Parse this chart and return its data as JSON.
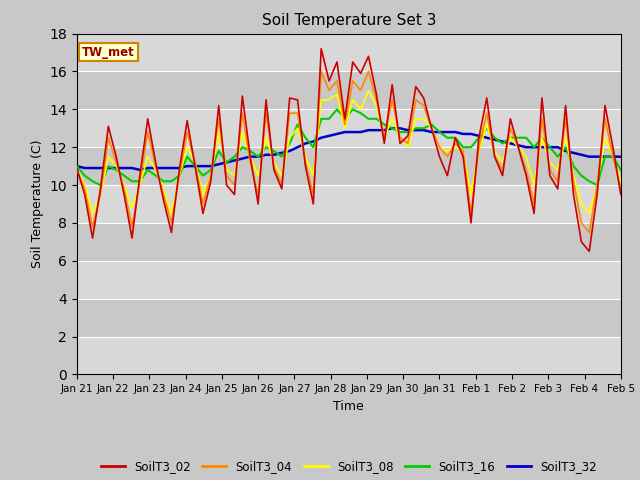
{
  "title": "Soil Temperature Set 3",
  "xlabel": "Time",
  "ylabel": "Soil Temperature (C)",
  "ylim": [
    0,
    18
  ],
  "yticks": [
    0,
    2,
    4,
    6,
    8,
    10,
    12,
    14,
    16,
    18
  ],
  "background_color": "#d8d8d8",
  "plot_bg_color": "#e8e8e8",
  "annotation_text": "TW_met",
  "annotation_bg": "#ffffcc",
  "annotation_border": "#cc0000",
  "series": {
    "SoilT3_02": {
      "color": "#cc0000",
      "lw": 1.2,
      "values": [
        10.9,
        9.5,
        7.2,
        9.8,
        13.1,
        11.5,
        9.5,
        7.2,
        10.5,
        13.5,
        11.2,
        9.2,
        7.5,
        10.8,
        13.4,
        11.0,
        8.5,
        10.2,
        14.2,
        10.0,
        9.5,
        14.7,
        11.5,
        9.0,
        14.5,
        10.8,
        9.8,
        14.6,
        14.5,
        11.0,
        9.0,
        17.2,
        15.5,
        16.5,
        13.5,
        16.5,
        15.9,
        16.8,
        14.8,
        12.2,
        15.3,
        12.2,
        12.6,
        15.2,
        14.6,
        13.0,
        11.5,
        10.5,
        12.5,
        11.5,
        8.0,
        12.5,
        14.6,
        11.5,
        10.5,
        13.5,
        12.0,
        10.5,
        8.5,
        14.6,
        10.5,
        9.8,
        14.2,
        9.5,
        7.0,
        6.5,
        9.5,
        14.2,
        12.0,
        9.5
      ]
    },
    "SoilT3_04": {
      "color": "#ff8800",
      "lw": 1.2,
      "values": [
        10.8,
        9.8,
        7.8,
        9.5,
        12.5,
        11.2,
        9.8,
        7.8,
        10.2,
        12.8,
        11.0,
        9.5,
        8.0,
        10.5,
        12.8,
        11.2,
        9.0,
        10.5,
        13.5,
        10.5,
        10.0,
        13.8,
        11.2,
        9.5,
        13.8,
        11.0,
        10.0,
        13.8,
        13.8,
        11.2,
        9.5,
        16.0,
        15.0,
        15.5,
        13.2,
        15.5,
        15.0,
        16.0,
        14.5,
        12.5,
        14.5,
        12.5,
        12.2,
        14.5,
        14.2,
        13.0,
        12.0,
        11.5,
        12.2,
        11.8,
        8.5,
        12.0,
        13.8,
        11.5,
        10.8,
        13.0,
        12.0,
        10.8,
        9.0,
        13.5,
        10.8,
        10.2,
        13.5,
        10.2,
        8.0,
        7.5,
        10.0,
        13.5,
        11.5,
        9.8
      ]
    },
    "SoilT3_08": {
      "color": "#ffff00",
      "lw": 1.2,
      "values": [
        10.8,
        10.0,
        8.5,
        9.5,
        11.5,
        11.0,
        10.0,
        8.8,
        10.0,
        11.5,
        10.8,
        9.8,
        8.5,
        10.5,
        12.0,
        11.2,
        9.5,
        10.5,
        12.8,
        10.8,
        10.5,
        12.8,
        11.5,
        10.5,
        12.5,
        11.2,
        10.5,
        12.5,
        13.0,
        11.5,
        10.5,
        14.5,
        14.5,
        14.8,
        13.0,
        14.5,
        14.0,
        15.0,
        14.2,
        12.5,
        13.5,
        12.5,
        12.0,
        13.5,
        13.5,
        13.0,
        12.0,
        11.8,
        12.0,
        11.8,
        9.5,
        11.8,
        13.2,
        11.8,
        11.2,
        12.5,
        12.0,
        11.5,
        10.0,
        12.5,
        11.2,
        10.8,
        12.5,
        10.5,
        9.0,
        8.5,
        10.0,
        12.5,
        11.5,
        10.2
      ]
    },
    "SoilT3_16": {
      "color": "#00cc00",
      "lw": 1.5,
      "values": [
        11.0,
        10.5,
        10.2,
        10.0,
        11.0,
        10.8,
        10.5,
        10.2,
        10.2,
        10.8,
        10.5,
        10.2,
        10.2,
        10.5,
        11.5,
        11.0,
        10.5,
        10.8,
        11.8,
        11.2,
        11.5,
        12.0,
        11.8,
        11.5,
        12.0,
        11.8,
        11.5,
        12.2,
        13.2,
        12.5,
        12.0,
        13.5,
        13.5,
        14.0,
        13.5,
        14.0,
        13.8,
        13.5,
        13.5,
        13.2,
        13.0,
        12.8,
        12.8,
        13.0,
        13.0,
        13.2,
        12.8,
        12.5,
        12.5,
        12.0,
        12.0,
        12.5,
        13.0,
        12.5,
        12.2,
        12.5,
        12.5,
        12.5,
        12.0,
        12.5,
        12.0,
        11.5,
        12.0,
        11.0,
        10.5,
        10.2,
        10.0,
        11.5,
        11.5,
        10.8
      ]
    },
    "SoilT3_32": {
      "color": "#0000cc",
      "lw": 1.8,
      "values": [
        11.0,
        10.9,
        10.9,
        10.9,
        10.9,
        10.9,
        10.9,
        10.9,
        10.8,
        10.9,
        10.9,
        10.9,
        10.9,
        10.9,
        11.0,
        11.0,
        11.0,
        11.0,
        11.1,
        11.2,
        11.3,
        11.4,
        11.5,
        11.5,
        11.6,
        11.6,
        11.7,
        11.8,
        12.0,
        12.2,
        12.3,
        12.5,
        12.6,
        12.7,
        12.8,
        12.8,
        12.8,
        12.9,
        12.9,
        12.9,
        13.0,
        13.0,
        12.9,
        12.9,
        12.9,
        12.8,
        12.8,
        12.8,
        12.8,
        12.7,
        12.7,
        12.6,
        12.5,
        12.4,
        12.3,
        12.2,
        12.1,
        12.0,
        12.0,
        12.0,
        12.0,
        12.0,
        11.8,
        11.7,
        11.6,
        11.5,
        11.5,
        11.5,
        11.5,
        11.5
      ]
    }
  },
  "xtick_labels": [
    "Jan 21",
    "Jan 22",
    "Jan 23",
    "Jan 24",
    "Jan 25",
    "Jan 26",
    "Jan 27",
    "Jan 28",
    "Jan 29",
    "Jan 30",
    "Jan 31",
    "Feb 1",
    "Feb 2",
    "Feb 3",
    "Feb 4",
    "Feb 5"
  ],
  "n_points": 70,
  "legend_entries": [
    "SoilT3_02",
    "SoilT3_04",
    "SoilT3_08",
    "SoilT3_16",
    "SoilT3_32"
  ],
  "legend_colors": [
    "#cc0000",
    "#ff8800",
    "#ffff00",
    "#00cc00",
    "#0000cc"
  ]
}
